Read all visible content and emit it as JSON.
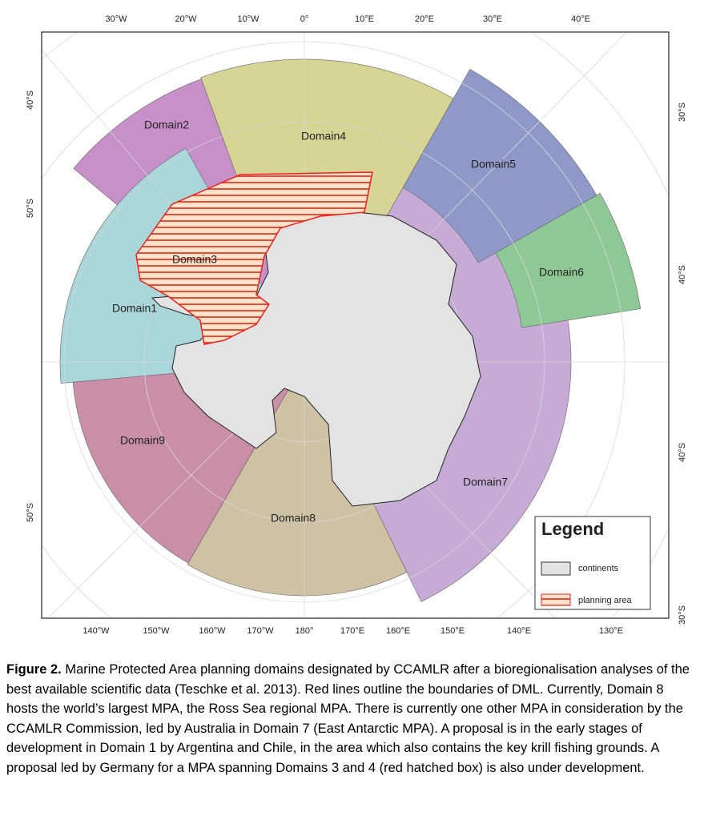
{
  "map": {
    "top_labels": [
      "30°W",
      "20°W",
      "10°W",
      "0°",
      "10°E",
      "20°E",
      "30°E",
      "40°E"
    ],
    "bottom_labels": [
      "140°W",
      "150°W",
      "160°W",
      "170°W",
      "180°",
      "170°E",
      "160°E",
      "150°E",
      "140°E",
      "130°E"
    ],
    "left_labels": [
      "40°S",
      "50°S",
      "50°S"
    ],
    "right_labels": [
      "30°S",
      "40°S",
      "40°S",
      "30°S"
    ],
    "domains": [
      "Domain1",
      "Domain2",
      "Domain3",
      "Domain4",
      "Domain5",
      "Domain6",
      "Domain7",
      "Domain8",
      "Domain9"
    ],
    "legend": {
      "title": "Legend",
      "entries": [
        "continents",
        "planning area"
      ]
    }
  },
  "caption": {
    "label": "Figure 2.",
    "text": " Marine Protected Area planning domains designated by CCAMLR after a bioregionalisation analyses of the best available scientific data (Teschke et al. 2013).  Red lines outline the boundaries of DML.  Currently, Domain 8 hosts the world’s largest MPA, the Ross Sea regional MPA.  There is currently one other MPA in consideration by the CCAMLR Commission, led by Australia in Domain 7 (East Antarctic MPA).  A proposal is in the early stages of development in Domain 1 by Argentina and Chile, in the area which also contains the key krill fishing grounds.  A proposal led by Germany for a MPA spanning Domains 3 and 4 (red hatched box) is also under development."
  }
}
